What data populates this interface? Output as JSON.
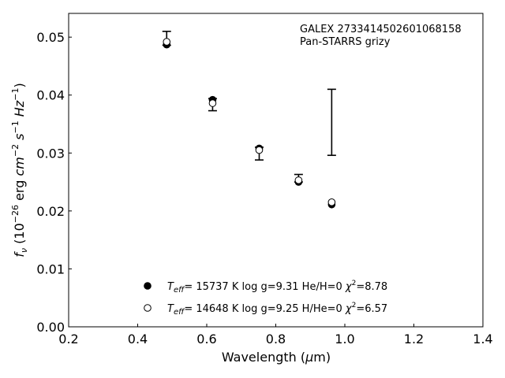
{
  "chart_data": {
    "type": "scatter",
    "annotation_lines": [
      "GALEX 2733414502601068158",
      "Pan-STARRS grizy"
    ],
    "xlabel": {
      "text": "Wavelength (",
      "symbol": "μ",
      "after": "m)"
    },
    "ylabel": {
      "f": "f",
      "nu": "ν",
      "open": " (10",
      "exp1": "−26",
      "erg": " erg ",
      "cm": "cm",
      "exp2": "−2",
      "s": " s",
      "exp3": "−1",
      "hz": " Hz",
      "exp4": "−1",
      "close": ")"
    },
    "xlim": [
      0.2,
      1.4
    ],
    "ylim": [
      0.0,
      0.0541
    ],
    "xticks": [
      0.2,
      0.4,
      0.6,
      0.8,
      1.0,
      1.2,
      1.4
    ],
    "xtick_labels": [
      "0.2",
      "0.4",
      "0.6",
      "0.8",
      "1.0",
      "1.2",
      "1.4"
    ],
    "yticks": [
      0.0,
      0.01,
      0.02,
      0.03,
      0.04,
      0.05
    ],
    "ytick_labels": [
      "0.00",
      "0.01",
      "0.02",
      "0.03",
      "0.04",
      "0.05"
    ],
    "grid": false,
    "observed": {
      "x": [
        0.484,
        0.617,
        0.752,
        0.866,
        0.962
      ],
      "y_low": [
        0.0486,
        0.0373,
        0.0288,
        0.025,
        0.0296
      ],
      "y_high": [
        0.051,
        0.0394,
        0.031,
        0.0263,
        0.041
      ]
    },
    "series": [
      {
        "marker": "filled",
        "x": [
          0.484,
          0.617,
          0.752,
          0.866,
          0.962
        ],
        "y": [
          0.0487,
          0.0392,
          0.0308,
          0.025,
          0.0211
        ],
        "legend": {
          "t": "T",
          "sub": "eff",
          "params": "= 15737 K  log g=9.31  He/H=0  ",
          "chi": "χ",
          "sup": "2",
          "val": "=8.78"
        }
      },
      {
        "marker": "open",
        "x": [
          0.484,
          0.617,
          0.752,
          0.866,
          0.962
        ],
        "y": [
          0.0492,
          0.0386,
          0.0305,
          0.0253,
          0.0215
        ],
        "legend": {
          "t": "T",
          "sub": "eff",
          "params": "= 14648 K  log g=9.25  H/He=0  ",
          "chi": "χ",
          "sup": "2",
          "val": "=6.57"
        }
      }
    ]
  }
}
